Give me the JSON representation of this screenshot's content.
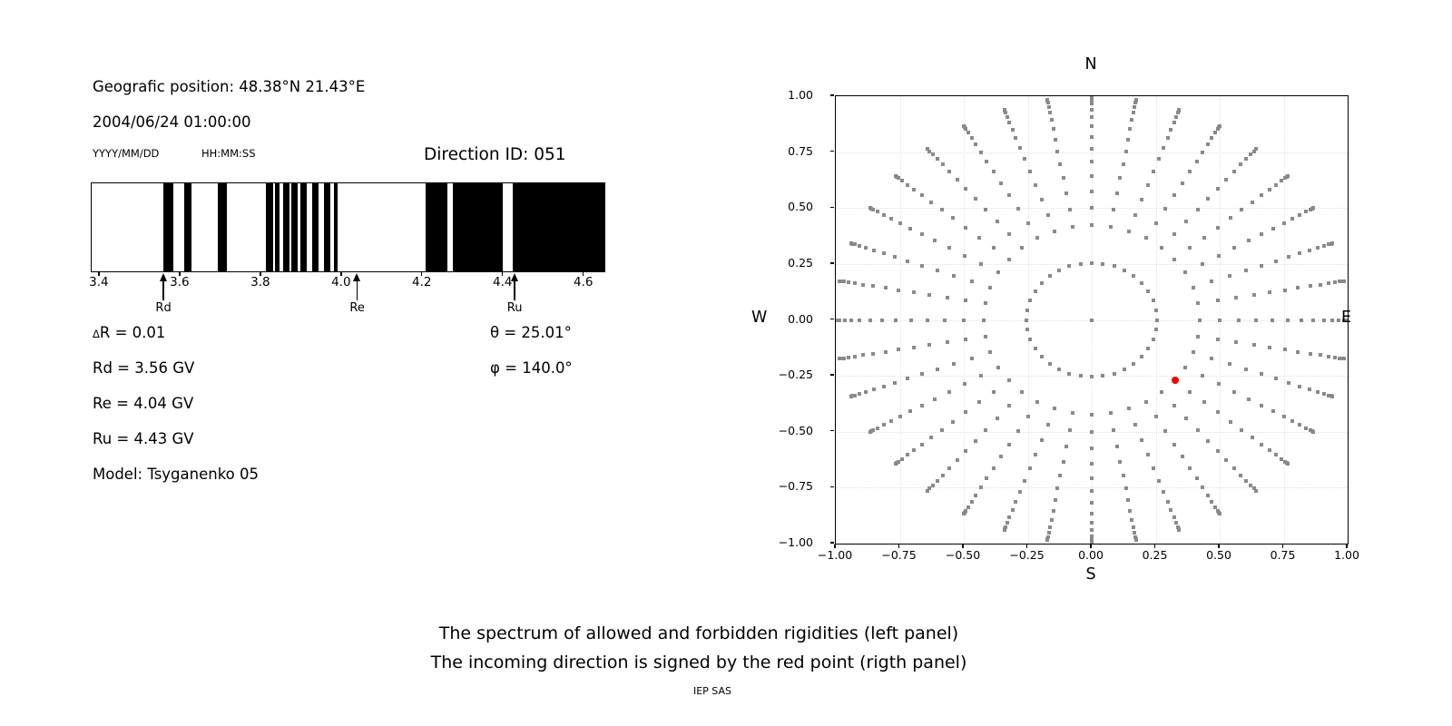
{
  "header": {
    "geo_position": "Geografic position: 48.38°N 21.43°E",
    "datetime": "2004/06/24 01:00:00",
    "date_format_label": "YYYY/MM/DD",
    "time_format_label": "HH:MM:SS",
    "direction_id": "Direction ID: 051"
  },
  "params": {
    "left": [
      "ΔR = 0.01",
      "Rd = 3.56 GV",
      "Re = 4.04 GV",
      "Ru = 4.43 GV",
      "Model: Tsyganenko 05"
    ],
    "right": [
      "θ = 25.01°",
      "φ = 140.0°"
    ]
  },
  "captions": {
    "line1": "The spectrum of allowed and forbidden rigidities (left panel)",
    "line2": "The incoming direction is signed by the red point (rigth panel)",
    "credit": "IEP SAS"
  },
  "chart_data": {
    "spectrum": {
      "type": "bands",
      "title": "Rigidity spectrum",
      "x_range": [
        3.38,
        4.65
      ],
      "x_unit": "GV",
      "x_ticks": [
        3.4,
        3.6,
        3.8,
        4.0,
        4.2,
        4.4,
        4.6
      ],
      "x_tick_labels": [
        "3.4",
        "3.6",
        "3.8",
        "4.0",
        "4.2",
        "4.4",
        "4.6"
      ],
      "black_means": "forbidden rigidities",
      "white_means": "allowed rigidities",
      "forbidden_bands_GV": [
        [
          3.558,
          3.582
        ],
        [
          3.61,
          3.628
        ],
        [
          3.692,
          3.714
        ],
        [
          3.812,
          3.829
        ],
        [
          3.833,
          3.845
        ],
        [
          3.854,
          3.869
        ],
        [
          3.875,
          3.89
        ],
        [
          3.896,
          3.912
        ],
        [
          3.927,
          3.942
        ],
        [
          3.956,
          3.971
        ],
        [
          3.98,
          3.99
        ],
        [
          4.208,
          4.262
        ],
        [
          4.274,
          4.398
        ],
        [
          4.424,
          4.65
        ]
      ],
      "markers": [
        {
          "label": "Rd",
          "value_GV": 3.56
        },
        {
          "label": "Re",
          "value_GV": 4.04
        },
        {
          "label": "Ru",
          "value_GV": 4.43
        }
      ]
    },
    "direction_map": {
      "type": "scatter",
      "x_range": [
        -1,
        1
      ],
      "y_range": [
        -1,
        1
      ],
      "tick_values": [
        -1,
        -0.75,
        -0.5,
        -0.25,
        0,
        0.25,
        0.5,
        0.75,
        1
      ],
      "tick_labels": [
        "−1.00",
        "−0.75",
        "−0.50",
        "−0.25",
        "0.00",
        "0.25",
        "0.50",
        "0.75",
        "1.00"
      ],
      "grid_on": true,
      "compass": {
        "top": "N",
        "bottom": "S",
        "left": "W",
        "right": "E"
      },
      "grid_dots": {
        "azimuth_deg": {
          "start": 0,
          "end": 350,
          "step": 10
        },
        "zenith_deg": {
          "start": 25,
          "end": 90,
          "step": 5
        },
        "radius_mapping": "sin(zenith)",
        "inner_ring": {
          "radius": 0.255,
          "points": 36
        },
        "center_dot": true,
        "color": "#8a8a8a"
      },
      "red_point": {
        "x": 0.325,
        "y": -0.271,
        "color": "#ee0000",
        "meaning": "incoming direction, θ = 25.01°, φ = 140.0°"
      }
    }
  }
}
